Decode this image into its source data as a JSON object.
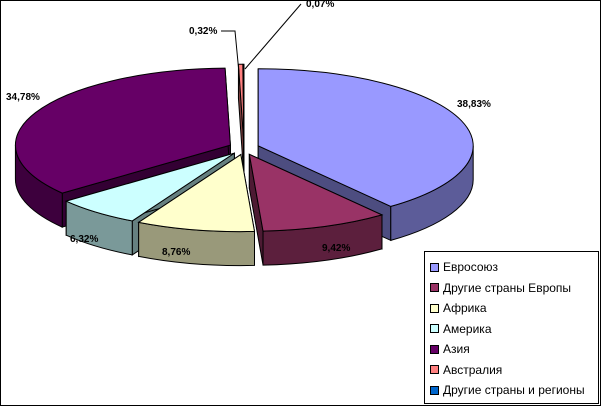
{
  "chart_data": {
    "type": "pie",
    "title": "",
    "three_d": true,
    "exploded": true,
    "legend_position": "bottom-right",
    "slices": [
      {
        "name": "Евросоюз",
        "value": 38.83,
        "label": "38,83%",
        "color": "#9999ff"
      },
      {
        "name": "Другие страны Европы",
        "value": 9.42,
        "label": "9,42%",
        "color": "#993366"
      },
      {
        "name": "Африка",
        "value": 8.76,
        "label": "8,76%",
        "color": "#ffffcc"
      },
      {
        "name": "Америка",
        "value": 6.32,
        "label": "6,32%",
        "color": "#ccffff"
      },
      {
        "name": "Азия",
        "value": 34.78,
        "label": "34,78%",
        "color": "#660066"
      },
      {
        "name": "Австралия",
        "value": 0.32,
        "label": "0,32%",
        "color": "#ff8080"
      },
      {
        "name": "Другие страны и регионы",
        "value": 0.07,
        "label": "0,07%",
        "color": "#0066cc"
      }
    ]
  }
}
